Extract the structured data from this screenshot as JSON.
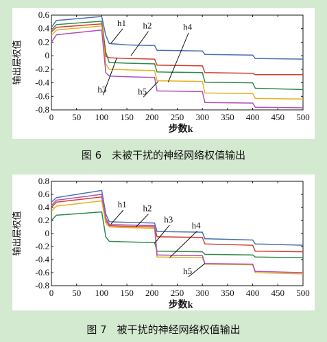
{
  "chart_data": [
    {
      "type": "line",
      "caption": "图 6　未被干扰的神经网络权值输出",
      "xlabel": "步数k",
      "ylabel": "输出层权值",
      "xlim": [
        0,
        500
      ],
      "ylim": [
        -0.8,
        0.6
      ],
      "xticks": [
        0,
        50,
        100,
        150,
        200,
        250,
        300,
        350,
        400,
        450,
        500
      ],
      "yticks": [
        -0.8,
        -0.6,
        -0.4,
        -0.2,
        0,
        0.2,
        0.4,
        0.6
      ],
      "ytick_labels": [
        "-0.8",
        "-0.6",
        "-0.4",
        "-0.2",
        "0",
        "0.2",
        "0.4",
        "0.6"
      ],
      "grid": false,
      "series": [
        {
          "name": "h1",
          "color": "#4a6fb0",
          "x": [
            0,
            10,
            100,
            108,
            115,
            150,
            205,
            210,
            300,
            305,
            400,
            405,
            500
          ],
          "y": [
            0.42,
            0.52,
            0.58,
            0.3,
            0.18,
            0.16,
            0.15,
            0.08,
            0.07,
            0.02,
            0.01,
            -0.04,
            -0.05
          ]
        },
        {
          "name": "h2",
          "color": "#2f8a4a",
          "x": [
            0,
            10,
            100,
            108,
            115,
            150,
            205,
            210,
            300,
            305,
            400,
            405,
            500
          ],
          "y": [
            0.38,
            0.46,
            0.51,
            0.05,
            -0.1,
            -0.11,
            -0.12,
            -0.24,
            -0.25,
            -0.39,
            -0.4,
            -0.48,
            -0.5
          ]
        },
        {
          "name": "h3",
          "color": "#d04030",
          "x": [
            0,
            10,
            100,
            108,
            115,
            150,
            205,
            210,
            300,
            305,
            400,
            405,
            500
          ],
          "y": [
            0.35,
            0.42,
            0.47,
            -0.01,
            -0.03,
            -0.04,
            -0.05,
            -0.14,
            -0.15,
            -0.25,
            -0.26,
            -0.28,
            -0.28
          ]
        },
        {
          "name": "h4",
          "color": "#e8b020",
          "x": [
            0,
            10,
            100,
            108,
            115,
            150,
            205,
            210,
            300,
            305,
            400,
            405,
            500
          ],
          "y": [
            0.3,
            0.38,
            0.44,
            -0.12,
            -0.2,
            -0.21,
            -0.22,
            -0.37,
            -0.38,
            -0.55,
            -0.56,
            -0.63,
            -0.64
          ]
        },
        {
          "name": "h5",
          "color": "#b050b8",
          "x": [
            0,
            10,
            100,
            108,
            115,
            150,
            205,
            210,
            300,
            305,
            400,
            405,
            500
          ],
          "y": [
            0.2,
            0.31,
            0.38,
            -0.25,
            -0.3,
            -0.31,
            -0.32,
            -0.52,
            -0.53,
            -0.69,
            -0.7,
            -0.76,
            -0.77
          ]
        }
      ],
      "annotations": [
        {
          "text": "h1",
          "x": 139,
          "y": 0.44,
          "arrow_to": [
            118,
            0.18
          ]
        },
        {
          "text": "h2",
          "x": 190,
          "y": 0.4,
          "arrow_to": [
            158,
            0.0
          ]
        },
        {
          "text": "h4",
          "x": 270,
          "y": 0.38,
          "arrow_to": [
            232,
            -0.39
          ]
        },
        {
          "text": "h3",
          "x": 100,
          "y": -0.54,
          "arrow_to": [
            130,
            -0.03
          ]
        },
        {
          "text": "h5",
          "x": 180,
          "y": -0.57,
          "arrow_to": [
            212,
            -0.38
          ]
        }
      ]
    },
    {
      "type": "line",
      "caption": "图 7　被干扰的神经网络权值输出",
      "xlabel": "步数k",
      "ylabel": "输出层权值",
      "xlim": [
        0,
        500
      ],
      "ylim": [
        -0.8,
        0.8
      ],
      "xticks": [
        0,
        50,
        100,
        150,
        200,
        250,
        300,
        350,
        400,
        450,
        500
      ],
      "yticks": [
        -0.8,
        -0.6,
        -0.4,
        -0.2,
        0,
        0.2,
        0.4,
        0.6,
        0.8
      ],
      "ytick_labels": [
        "-0.8",
        "-0.6",
        "-0.4",
        "-0.2",
        "0",
        "0.2",
        "0.4",
        "0.6",
        "0.8"
      ],
      "grid": false,
      "series": [
        {
          "name": "h1",
          "color": "#4a6fb0",
          "x": [
            0,
            10,
            100,
            108,
            115,
            150,
            205,
            210,
            300,
            305,
            400,
            405,
            500
          ],
          "y": [
            0.48,
            0.55,
            0.66,
            0.3,
            0.18,
            0.17,
            0.16,
            0.03,
            0.02,
            -0.08,
            -0.1,
            -0.16,
            -0.18
          ]
        },
        {
          "name": "h2",
          "color": "#2f8a4a",
          "x": [
            0,
            10,
            100,
            108,
            115,
            150,
            205,
            210,
            300,
            305,
            400,
            405,
            500
          ],
          "y": [
            0.2,
            0.28,
            0.33,
            -0.05,
            -0.12,
            -0.13,
            -0.14,
            -0.27,
            -0.28,
            -0.32,
            -0.33,
            -0.36,
            -0.37
          ]
        },
        {
          "name": "h3",
          "color": "#d04030",
          "x": [
            0,
            10,
            100,
            108,
            115,
            150,
            205,
            210,
            300,
            305,
            400,
            405,
            500
          ],
          "y": [
            0.4,
            0.48,
            0.56,
            0.2,
            0.12,
            0.11,
            0.1,
            -0.05,
            -0.06,
            -0.16,
            -0.18,
            -0.27,
            -0.28
          ]
        },
        {
          "name": "h4",
          "color": "#e8b020",
          "x": [
            0,
            10,
            100,
            108,
            115,
            150,
            205,
            210,
            300,
            305,
            400,
            405,
            500
          ],
          "y": [
            0.34,
            0.42,
            0.5,
            0.16,
            0.1,
            0.09,
            0.08,
            -0.36,
            -0.37,
            -0.47,
            -0.48,
            -0.6,
            -0.62
          ]
        },
        {
          "name": "h5",
          "color": "#b050b8",
          "x": [
            0,
            10,
            100,
            108,
            115,
            150,
            205,
            210,
            300,
            305,
            400,
            405,
            500
          ],
          "y": [
            0.43,
            0.51,
            0.6,
            0.24,
            0.14,
            0.13,
            0.12,
            -0.33,
            -0.34,
            -0.46,
            -0.47,
            -0.58,
            -0.6
          ]
        }
      ],
      "annotations": [
        {
          "text": "h1",
          "x": 140,
          "y": 0.4,
          "arrow_to": [
            118,
            0.14
          ]
        },
        {
          "text": "h2",
          "x": 190,
          "y": 0.34,
          "arrow_to": [
            168,
            0.1
          ]
        },
        {
          "text": "h3",
          "x": 232,
          "y": 0.17,
          "arrow_to": [
            205,
            -0.15
          ]
        },
        {
          "text": "h4",
          "x": 287,
          "y": 0.08,
          "arrow_to": [
            235,
            -0.37
          ]
        },
        {
          "text": "h5",
          "x": 270,
          "y": -0.62,
          "arrow_to": [
            305,
            -0.46
          ]
        }
      ]
    }
  ]
}
